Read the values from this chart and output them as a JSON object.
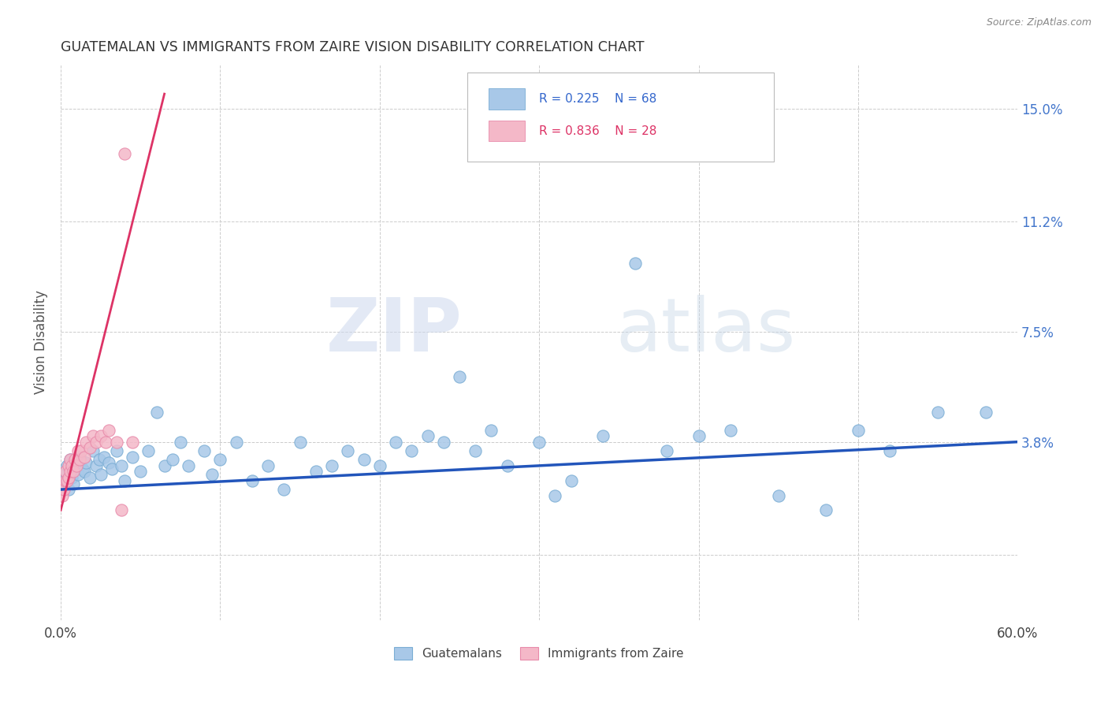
{
  "title": "GUATEMALAN VS IMMIGRANTS FROM ZAIRE VISION DISABILITY CORRELATION CHART",
  "source": "Source: ZipAtlas.com",
  "ylabel": "Vision Disability",
  "x_min": 0.0,
  "x_max": 0.6,
  "y_min": -0.022,
  "y_max": 0.165,
  "y_tick_positions": [
    0.0,
    0.038,
    0.075,
    0.112,
    0.15
  ],
  "y_tick_labels": [
    "",
    "3.8%",
    "7.5%",
    "11.2%",
    "15.0%"
  ],
  "blue_color": "#a8c8e8",
  "blue_edge_color": "#7aadd4",
  "pink_color": "#f4b8c8",
  "pink_edge_color": "#e88aaa",
  "blue_line_color": "#2255bb",
  "pink_line_color": "#dd3366",
  "label_blue": "Guatemalans",
  "label_pink": "Immigrants from Zaire",
  "watermark_zip": "ZIP",
  "watermark_atlas": "atlas",
  "blue_x": [
    0.002,
    0.003,
    0.004,
    0.005,
    0.006,
    0.007,
    0.008,
    0.009,
    0.01,
    0.011,
    0.012,
    0.014,
    0.015,
    0.016,
    0.018,
    0.02,
    0.022,
    0.024,
    0.025,
    0.027,
    0.03,
    0.032,
    0.035,
    0.038,
    0.04,
    0.045,
    0.05,
    0.055,
    0.06,
    0.065,
    0.07,
    0.075,
    0.08,
    0.09,
    0.095,
    0.1,
    0.11,
    0.12,
    0.13,
    0.14,
    0.15,
    0.16,
    0.17,
    0.18,
    0.19,
    0.2,
    0.21,
    0.22,
    0.23,
    0.24,
    0.25,
    0.26,
    0.27,
    0.28,
    0.3,
    0.31,
    0.32,
    0.34,
    0.36,
    0.38,
    0.4,
    0.42,
    0.45,
    0.48,
    0.5,
    0.52,
    0.55,
    0.58
  ],
  "blue_y": [
    0.025,
    0.028,
    0.03,
    0.022,
    0.032,
    0.026,
    0.024,
    0.029,
    0.031,
    0.027,
    0.033,
    0.029,
    0.028,
    0.031,
    0.026,
    0.035,
    0.03,
    0.032,
    0.027,
    0.033,
    0.031,
    0.029,
    0.035,
    0.03,
    0.025,
    0.033,
    0.028,
    0.035,
    0.048,
    0.03,
    0.032,
    0.038,
    0.03,
    0.035,
    0.027,
    0.032,
    0.038,
    0.025,
    0.03,
    0.022,
    0.038,
    0.028,
    0.03,
    0.035,
    0.032,
    0.03,
    0.038,
    0.035,
    0.04,
    0.038,
    0.06,
    0.035,
    0.042,
    0.03,
    0.038,
    0.02,
    0.025,
    0.04,
    0.098,
    0.035,
    0.04,
    0.042,
    0.02,
    0.015,
    0.042,
    0.035,
    0.048,
    0.048
  ],
  "pink_x": [
    0.001,
    0.002,
    0.003,
    0.003,
    0.004,
    0.005,
    0.005,
    0.006,
    0.006,
    0.007,
    0.008,
    0.009,
    0.01,
    0.011,
    0.012,
    0.013,
    0.015,
    0.016,
    0.018,
    0.02,
    0.022,
    0.025,
    0.028,
    0.03,
    0.035,
    0.038,
    0.04,
    0.045
  ],
  "pink_y": [
    0.02,
    0.022,
    0.025,
    0.028,
    0.025,
    0.026,
    0.03,
    0.028,
    0.032,
    0.03,
    0.028,
    0.032,
    0.03,
    0.035,
    0.032,
    0.035,
    0.033,
    0.038,
    0.036,
    0.04,
    0.038,
    0.04,
    0.038,
    0.042,
    0.038,
    0.015,
    0.135,
    0.038
  ],
  "blue_trend_x": [
    0.0,
    0.6
  ],
  "blue_trend_y": [
    0.022,
    0.038
  ],
  "pink_trend_x": [
    0.0,
    0.065
  ],
  "pink_trend_y": [
    0.015,
    0.155
  ]
}
